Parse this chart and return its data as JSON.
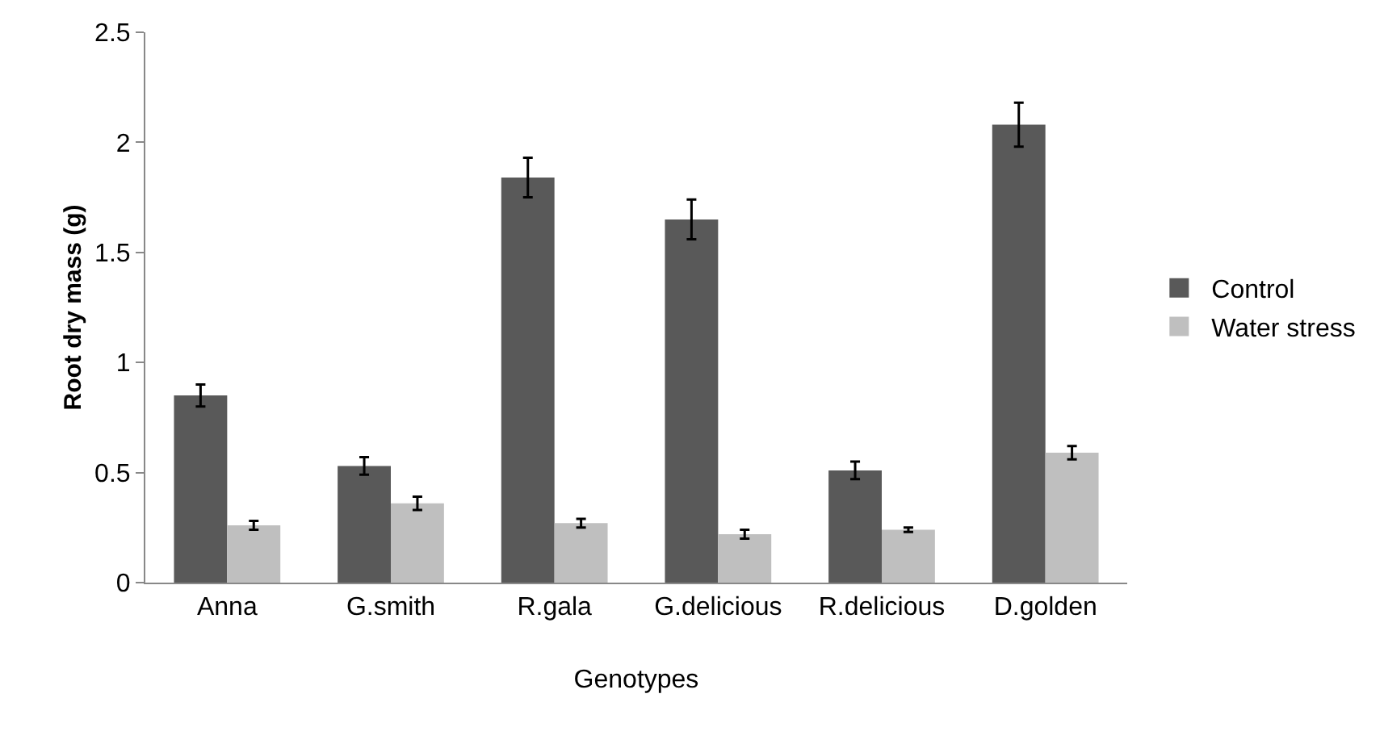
{
  "chart_data": {
    "type": "bar",
    "xlabel": "Genotypes",
    "ylabel": "Root dry mass (g)",
    "categories": [
      "Anna",
      "G.smith",
      "R.gala",
      "G.delicious",
      "R.delicious",
      "D.golden"
    ],
    "series": [
      {
        "name": "Control",
        "color": "#595959",
        "values": [
          0.85,
          0.53,
          1.84,
          1.65,
          0.51,
          2.08
        ],
        "errors": [
          0.05,
          0.04,
          0.09,
          0.09,
          0.04,
          0.1
        ]
      },
      {
        "name": "Water stress",
        "color": "#bfbfbf",
        "values": [
          0.26,
          0.36,
          0.27,
          0.22,
          0.24,
          0.59
        ],
        "errors": [
          0.02,
          0.03,
          0.02,
          0.02,
          0.01,
          0.03
        ]
      }
    ],
    "ylim": [
      0,
      2.5
    ],
    "yticks": [
      0,
      0.5,
      1,
      1.5,
      2,
      2.5
    ],
    "grid": false,
    "legend": "right"
  }
}
